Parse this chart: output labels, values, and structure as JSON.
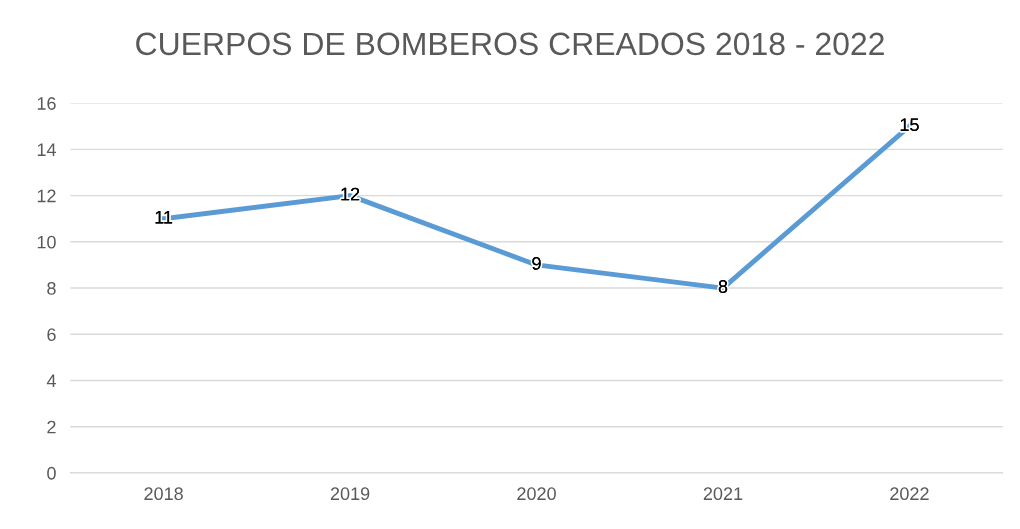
{
  "chart_data": {
    "type": "line",
    "title": "CUERPOS DE BOMBEROS CREADOS 2018 - 2022",
    "categories": [
      "2018",
      "2019",
      "2020",
      "2021",
      "2022"
    ],
    "series": [
      {
        "color": "#5b9bd5",
        "values": [
          11,
          12,
          9,
          8,
          15
        ]
      }
    ],
    "ylim": [
      0,
      16
    ],
    "yticks": [
      0,
      2,
      4,
      6,
      8,
      10,
      12,
      14,
      16
    ],
    "grid": "y",
    "data_labels": true,
    "legend": false,
    "marker": "none",
    "line_style": "solid"
  }
}
